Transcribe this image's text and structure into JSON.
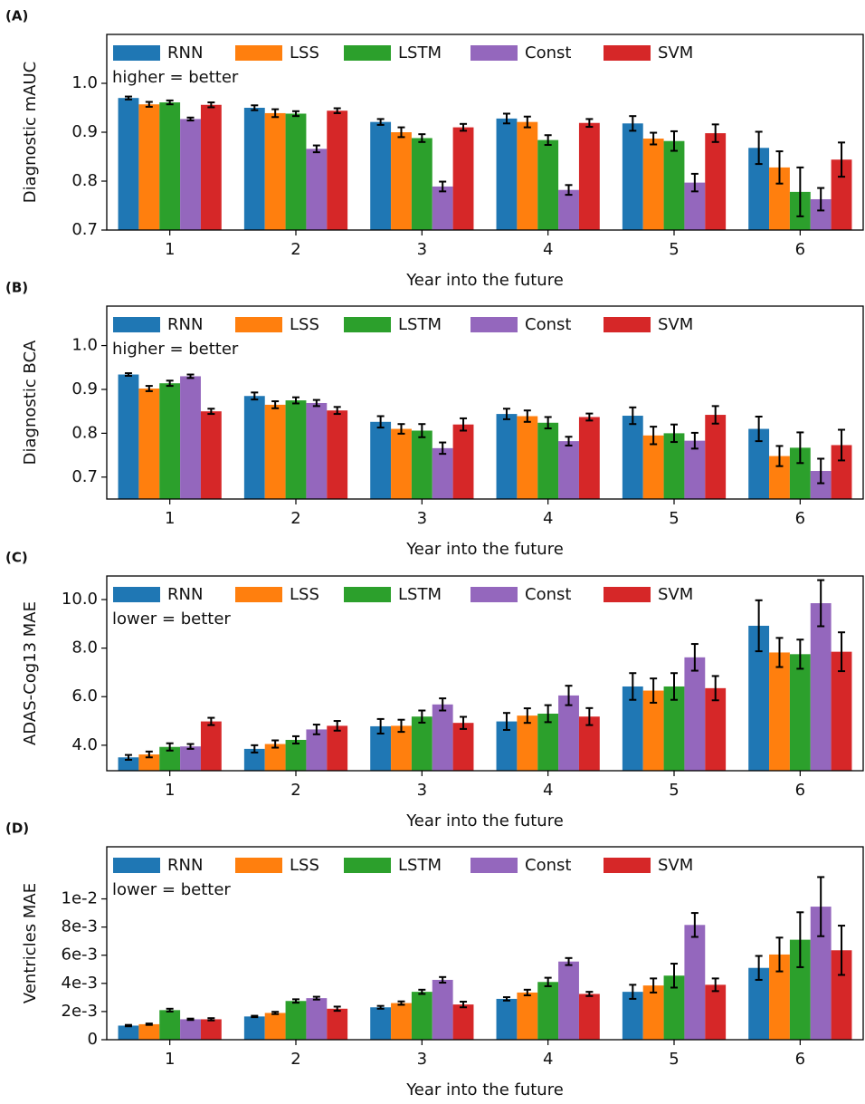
{
  "chart_data": [
    {
      "type": "bar",
      "panel_label": "(A)",
      "ylabel": "Diagnostic mAUC",
      "xlabel": "Year into the future",
      "annotation": "higher = better",
      "categories": [
        "1",
        "2",
        "3",
        "4",
        "5",
        "6"
      ],
      "ylim": [
        0.7,
        1.1
      ],
      "yticks": [
        0.7,
        0.8,
        0.9,
        {
          "value": 1,
          "label": "1.0"
        }
      ],
      "series": [
        {
          "name": "RNN",
          "color": "#1f77b4",
          "values": [
            0.97,
            0.95,
            0.921,
            0.928,
            0.918,
            0.868
          ],
          "errors": [
            0.003,
            0.005,
            0.006,
            0.01,
            0.015,
            0.033
          ]
        },
        {
          "name": "LSS",
          "color": "#ff7f0e",
          "values": [
            0.957,
            0.939,
            0.9,
            0.921,
            0.887,
            0.828
          ],
          "errors": [
            0.005,
            0.008,
            0.01,
            0.011,
            0.012,
            0.033
          ]
        },
        {
          "name": "LSTM",
          "color": "#2ca02c",
          "values": [
            0.961,
            0.938,
            0.888,
            0.884,
            0.882,
            0.778
          ],
          "errors": [
            0.004,
            0.005,
            0.008,
            0.01,
            0.02,
            0.05
          ]
        },
        {
          "name": "Const",
          "color": "#9467bd",
          "values": [
            0.927,
            0.866,
            0.789,
            0.782,
            0.797,
            0.763
          ],
          "errors": [
            0.003,
            0.007,
            0.01,
            0.01,
            0.018,
            0.023
          ]
        },
        {
          "name": "SVM",
          "color": "#d62728",
          "values": [
            0.956,
            0.944,
            0.91,
            0.919,
            0.898,
            0.844
          ],
          "errors": [
            0.005,
            0.005,
            0.007,
            0.008,
            0.018,
            0.035
          ]
        }
      ]
    },
    {
      "type": "bar",
      "panel_label": "(B)",
      "ylabel": "Diagnostic BCA",
      "xlabel": "Year into the future",
      "annotation": "higher = better",
      "categories": [
        "1",
        "2",
        "3",
        "4",
        "5",
        "6"
      ],
      "ylim": [
        0.65,
        1.09
      ],
      "yticks": [
        0.7,
        0.8,
        0.9,
        {
          "value": 1,
          "label": "1.0"
        }
      ],
      "series": [
        {
          "name": "RNN",
          "color": "#1f77b4",
          "values": [
            0.934,
            0.885,
            0.826,
            0.844,
            0.84,
            0.81
          ],
          "errors": [
            0.003,
            0.008,
            0.013,
            0.012,
            0.019,
            0.028
          ]
        },
        {
          "name": "LSS",
          "color": "#ff7f0e",
          "values": [
            0.902,
            0.865,
            0.81,
            0.839,
            0.795,
            0.748
          ],
          "errors": [
            0.006,
            0.008,
            0.011,
            0.013,
            0.02,
            0.023
          ]
        },
        {
          "name": "LSTM",
          "color": "#2ca02c",
          "values": [
            0.914,
            0.875,
            0.806,
            0.824,
            0.8,
            0.767
          ],
          "errors": [
            0.006,
            0.007,
            0.015,
            0.013,
            0.02,
            0.035
          ]
        },
        {
          "name": "Const",
          "color": "#9467bd",
          "values": [
            0.93,
            0.869,
            0.766,
            0.782,
            0.783,
            0.714
          ],
          "errors": [
            0.004,
            0.007,
            0.013,
            0.01,
            0.018,
            0.028
          ]
        },
        {
          "name": "SVM",
          "color": "#d62728",
          "values": [
            0.85,
            0.852,
            0.82,
            0.837,
            0.842,
            0.773
          ],
          "errors": [
            0.006,
            0.008,
            0.014,
            0.008,
            0.02,
            0.035
          ]
        }
      ]
    },
    {
      "type": "bar",
      "panel_label": "(C)",
      "ylabel": "ADAS-Cog13 MAE",
      "xlabel": "Year into the future",
      "annotation": "lower = better",
      "categories": [
        "1",
        "2",
        "3",
        "4",
        "5",
        "6"
      ],
      "ylim": [
        2.95,
        10.97
      ],
      "yticks": [
        {
          "value": 4,
          "label": "4.0"
        },
        {
          "value": 6,
          "label": "6.0"
        },
        {
          "value": 8,
          "label": "8.0"
        },
        {
          "value": 10,
          "label": "10.0"
        }
      ],
      "series": [
        {
          "name": "RNN",
          "color": "#1f77b4",
          "values": [
            3.5,
            3.85,
            4.78,
            4.98,
            6.42,
            8.92
          ],
          "errors": [
            0.1,
            0.15,
            0.3,
            0.35,
            0.55,
            1.05
          ]
        },
        {
          "name": "LSS",
          "color": "#ff7f0e",
          "values": [
            3.62,
            4.05,
            4.8,
            5.22,
            6.25,
            7.82
          ],
          "errors": [
            0.12,
            0.15,
            0.25,
            0.3,
            0.5,
            0.6
          ]
        },
        {
          "name": "LSTM",
          "color": "#2ca02c",
          "values": [
            3.93,
            4.22,
            5.18,
            5.3,
            6.42,
            7.75
          ],
          "errors": [
            0.15,
            0.15,
            0.25,
            0.35,
            0.55,
            0.6
          ]
        },
        {
          "name": "Const",
          "color": "#9467bd",
          "values": [
            3.95,
            4.65,
            5.68,
            6.05,
            7.62,
            9.85
          ],
          "errors": [
            0.1,
            0.2,
            0.25,
            0.4,
            0.55,
            0.95
          ]
        },
        {
          "name": "SVM",
          "color": "#d62728",
          "values": [
            4.98,
            4.8,
            4.92,
            5.18,
            6.35,
            7.85
          ],
          "errors": [
            0.15,
            0.2,
            0.25,
            0.35,
            0.5,
            0.8
          ]
        }
      ]
    },
    {
      "type": "bar",
      "panel_label": "(D)",
      "ylabel": "Ventricles MAE",
      "xlabel": "Year into the future",
      "annotation": "lower = better",
      "categories": [
        "1",
        "2",
        "3",
        "4",
        "5",
        "6"
      ],
      "ylim": [
        0,
        0.0137
      ],
      "yticks": [
        0,
        {
          "value": 0.002,
          "label": "2e-3"
        },
        {
          "value": 0.004,
          "label": "4e-3"
        },
        {
          "value": 0.006,
          "label": "6e-3"
        },
        {
          "value": 0.008,
          "label": "8e-3"
        },
        {
          "value": 0.01,
          "label": "1e-2"
        }
      ],
      "series": [
        {
          "name": "RNN",
          "color": "#1f77b4",
          "values": [
            0.001,
            0.00165,
            0.0023,
            0.0029,
            0.0034,
            0.0051
          ],
          "errors": [
            5e-05,
            5e-05,
            0.0001,
            0.00012,
            0.0005,
            0.00085
          ]
        },
        {
          "name": "LSS",
          "color": "#ff7f0e",
          "values": [
            0.0011,
            0.0019,
            0.0026,
            0.00335,
            0.00385,
            0.00605
          ],
          "errors": [
            5e-05,
            8e-05,
            0.00012,
            0.0002,
            0.0005,
            0.0012
          ]
        },
        {
          "name": "LSTM",
          "color": "#2ca02c",
          "values": [
            0.0021,
            0.00275,
            0.0034,
            0.0041,
            0.00455,
            0.0071
          ],
          "errors": [
            0.0001,
            0.00012,
            0.00015,
            0.0003,
            0.00085,
            0.00195
          ]
        },
        {
          "name": "Const",
          "color": "#9467bd",
          "values": [
            0.00145,
            0.00295,
            0.00425,
            0.00555,
            0.00815,
            0.00945
          ],
          "errors": [
            5e-05,
            0.0001,
            0.0002,
            0.00025,
            0.00085,
            0.0021
          ]
        },
        {
          "name": "SVM",
          "color": "#d62728",
          "values": [
            0.00145,
            0.0022,
            0.0025,
            0.00325,
            0.0039,
            0.00635
          ],
          "errors": [
            8e-05,
            0.00015,
            0.0002,
            0.00015,
            0.00045,
            0.00175
          ]
        }
      ]
    }
  ]
}
